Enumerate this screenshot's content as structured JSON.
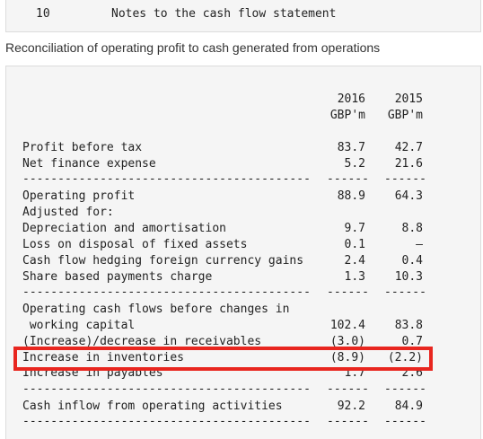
{
  "note": {
    "number": "10",
    "title": "Notes to the cash flow statement"
  },
  "heading": "Reconciliation of operating profit to cash generated from operations",
  "columns": {
    "y2016": "2016",
    "y2015": "2015",
    "unit2016": "GBP'm",
    "unit2015": "GBP'm"
  },
  "rows": [
    {
      "label": "Profit before tax",
      "v2016": "83.7",
      "v2015": "42.7"
    },
    {
      "label": "Net finance expense",
      "v2016": "5.2",
      "v2015": "21.6"
    },
    {
      "label": "Operating profit",
      "v2016": "88.9",
      "v2015": "64.3"
    },
    {
      "label": "Adjusted for:",
      "v2016": "",
      "v2015": ""
    },
    {
      "label": "Depreciation and amortisation",
      "v2016": "9.7",
      "v2015": "8.8"
    },
    {
      "label": "Loss on disposal of fixed assets",
      "v2016": "0.1",
      "v2015": "–"
    },
    {
      "label": "Cash flow hedging foreign currency gains",
      "v2016": "2.4",
      "v2015": "0.4"
    },
    {
      "label": "Share based payments charge",
      "v2016": "1.3",
      "v2015": "10.3"
    },
    {
      "label": "Operating cash flows before changes in",
      "v2016": "",
      "v2015": ""
    },
    {
      "label": " working capital",
      "v2016": "102.4",
      "v2015": "83.8"
    },
    {
      "label": "(Increase)/decrease in receivables",
      "v2016": "(3.0)",
      "v2015": "0.7"
    },
    {
      "label": "Increase in inventories",
      "v2016": "(8.9)",
      "v2015": "(2.2)"
    },
    {
      "label": "Increase in payables",
      "v2016": "1.7",
      "v2015": "2.6"
    },
    {
      "label": "Cash inflow from operating activities",
      "v2016": "92.2",
      "v2015": "84.9"
    }
  ],
  "rules": {
    "label_rule": "-----------------------------------------",
    "col_rule_2016": "------",
    "col_rule_2015": "------"
  },
  "highlight_color": "#e8261f"
}
